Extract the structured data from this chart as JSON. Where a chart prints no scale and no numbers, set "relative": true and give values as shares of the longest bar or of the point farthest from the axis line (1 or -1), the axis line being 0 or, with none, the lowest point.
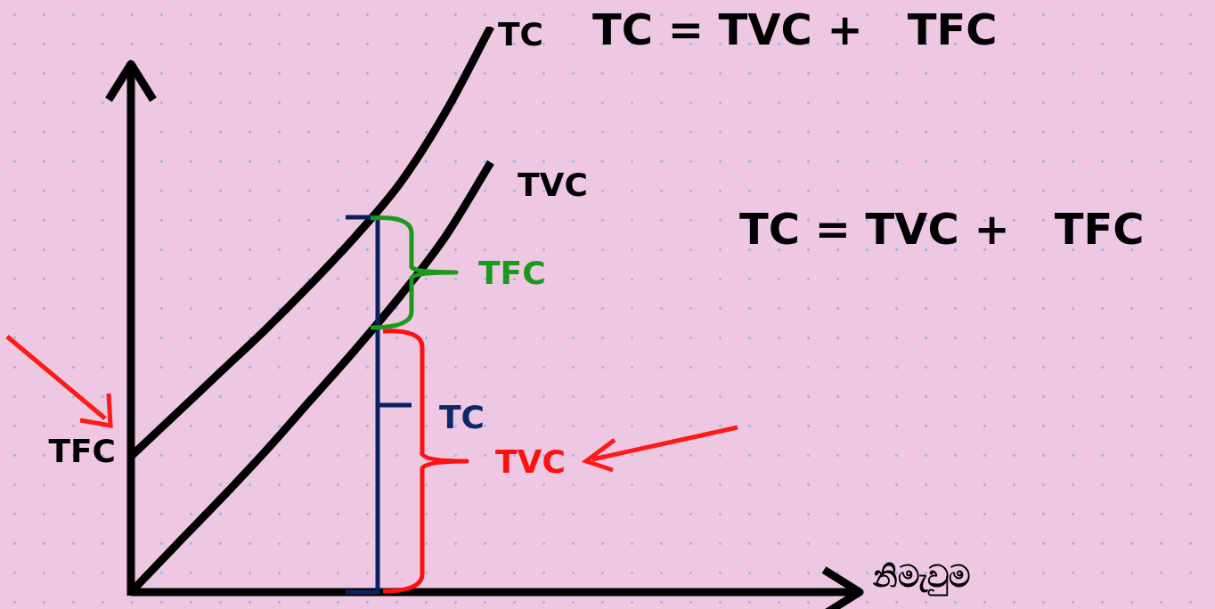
{
  "chart_data": {
    "type": "line",
    "relative": true,
    "categories": [
      null,
      null,
      null,
      null,
      null,
      null,
      null,
      null,
      null
    ],
    "series": [
      {
        "name": "TC",
        "color": "#000000",
        "values": [
          0.24,
          0.315,
          0.39,
          0.465,
          0.545,
          0.63,
          0.725,
          0.85,
          1
        ]
      },
      {
        "name": "TVC",
        "color": "#000000",
        "values": [
          0,
          0.083,
          0.165,
          0.25,
          0.34,
          0.43,
          0.525,
          0.63,
          0.76
        ]
      }
    ],
    "annotations": [
      "TC = TVC +   TFC",
      "TC = TVC +   TFC",
      "TFC",
      "TFC",
      "TC",
      "TVC",
      "නිමැවුම"
    ],
    "marker": "none",
    "line_style": "solid",
    "grid": false,
    "legend": false
  }
}
